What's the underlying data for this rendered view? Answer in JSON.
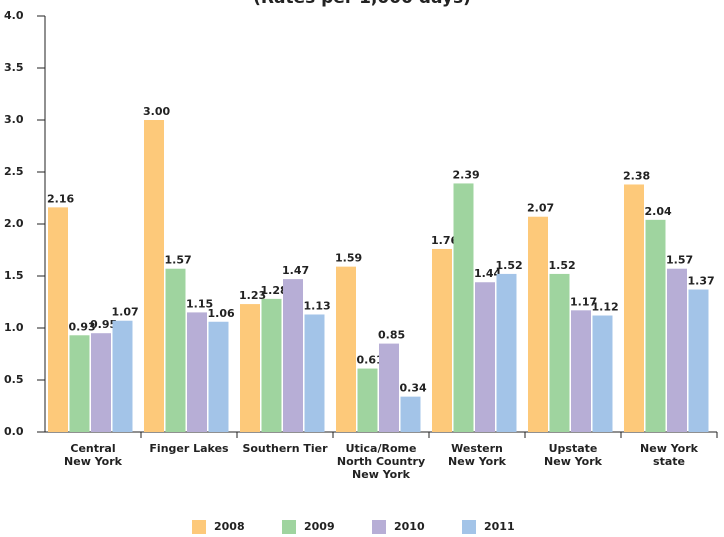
{
  "chart_data": {
    "type": "bar",
    "subtitle": "(Rates per 1,000 days)",
    "categories": [
      "Central\nNew York",
      "Finger Lakes",
      "Southern Tier",
      "Utica/Rome\nNorth Country\nNew York",
      "Western\nNew York",
      "Upstate\nNew York",
      "New York\nstate"
    ],
    "series": [
      {
        "name": "2008",
        "color": "#fdc97a",
        "values": [
          2.16,
          3,
          1.23,
          1.59,
          1.76,
          2.07,
          2.38
        ],
        "value_labels": [
          "2.16",
          "3.00",
          "1.23",
          "1.59",
          "1.76",
          "2.07",
          "2.38"
        ]
      },
      {
        "name": "2009",
        "color": "#9fd49f",
        "values": [
          0.93,
          1.57,
          1.28,
          0.61,
          2.39,
          1.52,
          2.04
        ],
        "value_labels": [
          "0.93",
          "1.57",
          "1.28",
          "0.61",
          "2.39",
          "1.52",
          "2.04"
        ]
      },
      {
        "name": "2010",
        "color": "#b7aed6",
        "values": [
          0.95,
          1.15,
          1.47,
          0.85,
          1.44,
          1.17,
          1.57
        ],
        "value_labels": [
          "0.95",
          "1.15",
          "1.47",
          "0.85",
          "1.44",
          "1.17",
          "1.57"
        ]
      },
      {
        "name": "2011",
        "color": "#a3c4e8",
        "values": [
          1.07,
          1.06,
          1.13,
          0.34,
          1.52,
          1.12,
          1.37
        ],
        "value_labels": [
          "1.07",
          "1.06",
          "1.13",
          "0.34",
          "1.52",
          "1.12",
          "1.37"
        ]
      }
    ],
    "ylim": [
      0,
      4
    ],
    "yticks": [
      {
        "value": 0,
        "label": "0.0"
      },
      {
        "value": 0.5,
        "label": "0.5"
      },
      {
        "value": 1,
        "label": "1.0"
      },
      {
        "value": 1.5,
        "label": "1.5"
      },
      {
        "value": 2,
        "label": "2.0"
      },
      {
        "value": 2.5,
        "label": "2.5"
      },
      {
        "value": 3,
        "label": "3.0"
      },
      {
        "value": 3.5,
        "label": "3.5"
      },
      {
        "value": 4,
        "label": "4.0"
      }
    ]
  }
}
